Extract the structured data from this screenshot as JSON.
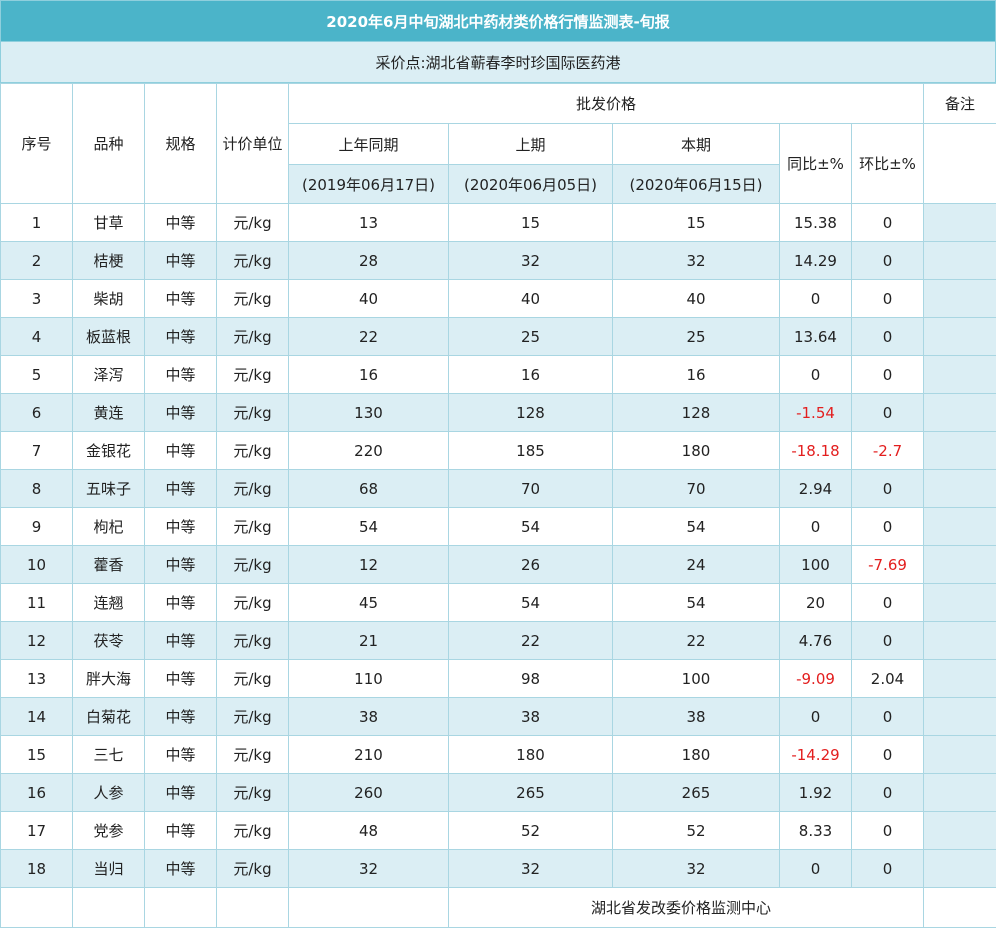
{
  "title": "2020年6月中旬湖北中药材类价格行情监测表-旬报",
  "collection_point": "采价点:湖北省蕲春李时珍国际医药港",
  "headers": {
    "index": "序号",
    "variety": "品种",
    "spec": "规格",
    "unit": "计价单位",
    "wholesale_price": "批发价格",
    "remark": "备注",
    "last_year": "上年同期",
    "last_period": "上期",
    "this_period": "本期",
    "yoy": "同比±%",
    "mom": "环比±%",
    "last_year_date": "(2019年06月17日)",
    "last_period_date": "(2020年06月05日)",
    "this_period_date": "(2020年06月15日)"
  },
  "rows": [
    {
      "no": "1",
      "name": "甘草",
      "spec": "中等",
      "unit": "元/kg",
      "last_year": "13",
      "last_period": "15",
      "this_period": "15",
      "yoy": "15.38",
      "mom": "0"
    },
    {
      "no": "2",
      "name": "桔梗",
      "spec": "中等",
      "unit": "元/kg",
      "last_year": "28",
      "last_period": "32",
      "this_period": "32",
      "yoy": "14.29",
      "mom": "0"
    },
    {
      "no": "3",
      "name": "柴胡",
      "spec": "中等",
      "unit": "元/kg",
      "last_year": "40",
      "last_period": "40",
      "this_period": "40",
      "yoy": "0",
      "mom": "0"
    },
    {
      "no": "4",
      "name": "板蓝根",
      "spec": "中等",
      "unit": "元/kg",
      "last_year": "22",
      "last_period": "25",
      "this_period": "25",
      "yoy": "13.64",
      "mom": "0"
    },
    {
      "no": "5",
      "name": "泽泻",
      "spec": "中等",
      "unit": "元/kg",
      "last_year": "16",
      "last_period": "16",
      "this_period": "16",
      "yoy": "0",
      "mom": "0"
    },
    {
      "no": "6",
      "name": "黄连",
      "spec": "中等",
      "unit": "元/kg",
      "last_year": "130",
      "last_period": "128",
      "this_period": "128",
      "yoy": "-1.54",
      "mom": "0"
    },
    {
      "no": "7",
      "name": "金银花",
      "spec": "中等",
      "unit": "元/kg",
      "last_year": "220",
      "last_period": "185",
      "this_period": "180",
      "yoy": "-18.18",
      "mom": "-2.7"
    },
    {
      "no": "8",
      "name": "五味子",
      "spec": "中等",
      "unit": "元/kg",
      "last_year": "68",
      "last_period": "70",
      "this_period": "70",
      "yoy": "2.94",
      "mom": "0"
    },
    {
      "no": "9",
      "name": "枸杞",
      "spec": "中等",
      "unit": "元/kg",
      "last_year": "54",
      "last_period": "54",
      "this_period": "54",
      "yoy": "0",
      "mom": "0"
    },
    {
      "no": "10",
      "name": "藿香",
      "spec": "中等",
      "unit": "元/kg",
      "last_year": "12",
      "last_period": "26",
      "this_period": "24",
      "yoy": "100",
      "mom": "-7.69"
    },
    {
      "no": "11",
      "name": "连翘",
      "spec": "中等",
      "unit": "元/kg",
      "last_year": "45",
      "last_period": "54",
      "this_period": "54",
      "yoy": "20",
      "mom": "0"
    },
    {
      "no": "12",
      "name": "茯苓",
      "spec": "中等",
      "unit": "元/kg",
      "last_year": "21",
      "last_period": "22",
      "this_period": "22",
      "yoy": "4.76",
      "mom": "0"
    },
    {
      "no": "13",
      "name": "胖大海",
      "spec": "中等",
      "unit": "元/kg",
      "last_year": "110",
      "last_period": "98",
      "this_period": "100",
      "yoy": "-9.09",
      "mom": "2.04"
    },
    {
      "no": "14",
      "name": "白菊花",
      "spec": "中等",
      "unit": "元/kg",
      "last_year": "38",
      "last_period": "38",
      "this_period": "38",
      "yoy": "0",
      "mom": "0"
    },
    {
      "no": "15",
      "name": "三七",
      "spec": "中等",
      "unit": "元/kg",
      "last_year": "210",
      "last_period": "180",
      "this_period": "180",
      "yoy": "-14.29",
      "mom": "0"
    },
    {
      "no": "16",
      "name": "人参",
      "spec": "中等",
      "unit": "元/kg",
      "last_year": "260",
      "last_period": "265",
      "this_period": "265",
      "yoy": "1.92",
      "mom": "0"
    },
    {
      "no": "17",
      "name": "党参",
      "spec": "中等",
      "unit": "元/kg",
      "last_year": "48",
      "last_period": "52",
      "this_period": "52",
      "yoy": "8.33",
      "mom": "0"
    },
    {
      "no": "18",
      "name": "当归",
      "spec": "中等",
      "unit": "元/kg",
      "last_year": "32",
      "last_period": "32",
      "this_period": "32",
      "yoy": "0",
      "mom": "0"
    }
  ],
  "footer": "湖北省发改委价格监测中心",
  "colors": {
    "title_bg": "#4bb4c9",
    "band": "#dbeef4",
    "negative": "#e31e1e",
    "border": "#a9d6e2"
  }
}
